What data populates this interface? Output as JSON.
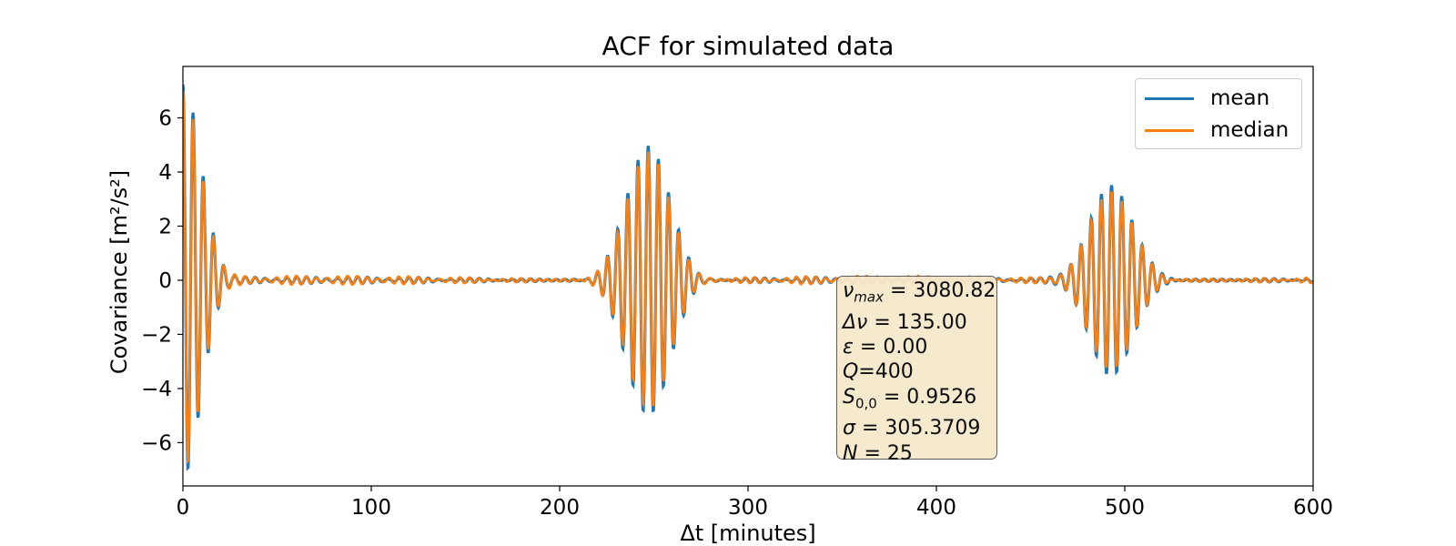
{
  "chart_data": {
    "type": "line",
    "title": "ACF for simulated data",
    "xlabel": "Δt [minutes]",
    "ylabel": "Covariance [m²/s²]",
    "xlim": [
      0,
      600
    ],
    "ylim": [
      -7.6,
      7.9
    ],
    "xticks": [
      "0",
      "100",
      "200",
      "300",
      "400",
      "500",
      "600"
    ],
    "yticks": [
      "6",
      "4",
      "2",
      "0",
      "−2",
      "−4",
      "−6"
    ],
    "legend_position": "top-right",
    "series": [
      {
        "name": "mean",
        "color": "#1f77b4"
      },
      {
        "name": "median",
        "color": "#ff7f0e"
      }
    ],
    "wave_model": {
      "period_minutes": 5.41,
      "packets": [
        {
          "center": 0,
          "sigma": 9.5,
          "amplitude_mean": 7.2,
          "amplitude_median": 6.9
        },
        {
          "center": 247,
          "sigma": 11.5,
          "amplitude_mean": 5.0,
          "amplitude_median": 4.75
        },
        {
          "center": 493,
          "sigma": 11.5,
          "amplitude_mean": 3.5,
          "amplitude_median": 3.3
        }
      ],
      "noise_amplitude": 0.12
    },
    "annotation": [
      {
        "symbol": "ν",
        "sub": "max",
        "rest": " = 3080.82"
      },
      {
        "symbol": "Δν",
        "sub": "",
        "rest": " = 135.00"
      },
      {
        "symbol": "ε",
        "sub": "",
        "rest": " = 0.00"
      },
      {
        "symbol": "Q",
        "sub": "",
        "rest": "=400"
      },
      {
        "symbol": "S",
        "sub": "0,0",
        "rest": " = 0.9526"
      },
      {
        "symbol": "σ",
        "sub": "",
        "rest": " = 305.3709"
      },
      {
        "symbol": "N",
        "sub": "",
        "rest": " = 25"
      }
    ]
  }
}
